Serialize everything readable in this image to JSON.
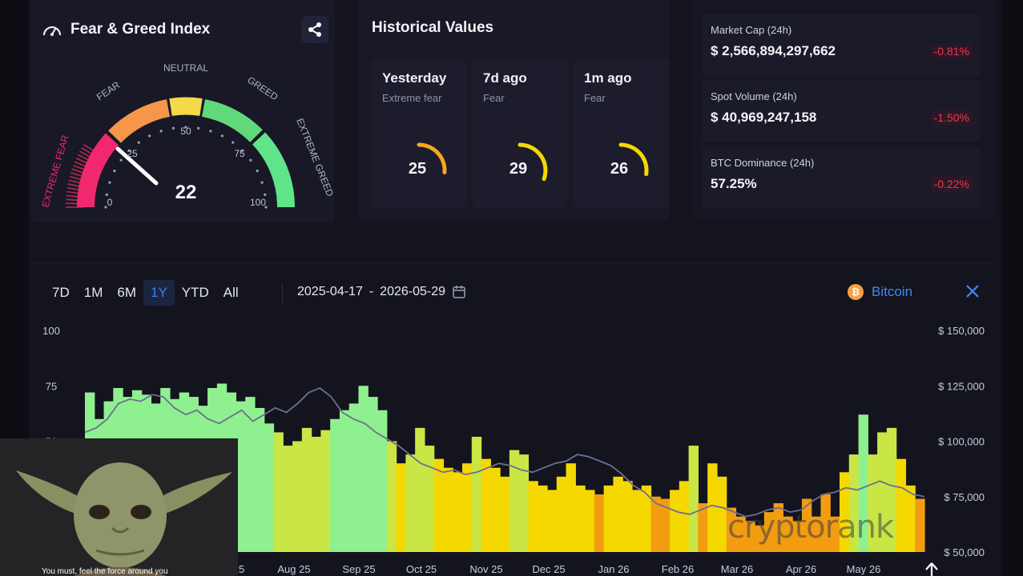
{
  "fear_greed": {
    "title": "Fear & Greed Index",
    "value": 22,
    "zone_labels": {
      "extreme_fear": "EXTREME FEAR",
      "fear": "FEAR",
      "neutral": "NEUTRAL",
      "greed": "GREED",
      "extreme_greed": "EXTREME GREED"
    },
    "ticks": [
      "0",
      "25",
      "50",
      "75",
      "100"
    ]
  },
  "historical": {
    "title": "Historical Values",
    "items": [
      {
        "label": "Yesterday",
        "sub": "Extreme fear",
        "value": "25",
        "color": "#f5a623"
      },
      {
        "label": "7d ago",
        "sub": "Fear",
        "value": "29",
        "color": "#f5d800"
      },
      {
        "label": "1m ago",
        "sub": "Fear",
        "value": "26",
        "color": "#f5d800"
      }
    ]
  },
  "market": [
    {
      "label": "Market Cap (24h)",
      "value": "$ 2,566,894,297,662",
      "change": "-0.81%"
    },
    {
      "label": "Spot Volume (24h)",
      "value": "$ 40,969,247,158",
      "change": "-1.50%"
    },
    {
      "label": "BTC Dominance (24h)",
      "value": "57.25%",
      "change": "-0.22%"
    }
  ],
  "controls": {
    "ranges": [
      "7D",
      "1M",
      "6M",
      "1Y",
      "YTD",
      "All"
    ],
    "active_range": "1Y",
    "date_start": "2025-04-17",
    "date_sep": "-",
    "date_end": "2026-05-29",
    "coin": "Bitcoin",
    "coin_symbol": "₿"
  },
  "overlay": {
    "caption": "You must, feel the force around you",
    "watermark": "cryptorank"
  },
  "chart_data": {
    "type": "bar",
    "x_ticks": [
      "25",
      "Aug 25",
      "Sep 25",
      "Oct 25",
      "Nov 25",
      "Dec 25",
      "Jan 26",
      "Feb 26",
      "Mar 26",
      "Apr 26",
      "May 26"
    ],
    "y_left_ticks": [
      "100",
      "75",
      "50"
    ],
    "y_right_ticks": [
      "$ 150,000",
      "$ 125,000",
      "$ 100,000",
      "$ 75,000",
      "$ 50,000"
    ],
    "y_left_range": [
      0,
      100
    ],
    "y_right_range": [
      50000,
      150000
    ],
    "grid": false,
    "series": [
      {
        "name": "Fear & Greed",
        "kind": "bars",
        "values": [
          72,
          60,
          68,
          74,
          70,
          73,
          71,
          67,
          74,
          69,
          72,
          70,
          66,
          74,
          76,
          72,
          68,
          70,
          65,
          58,
          54,
          48,
          50,
          56,
          52,
          55,
          60,
          64,
          67,
          75,
          70,
          64,
          50,
          40,
          44,
          56,
          48,
          42,
          38,
          36,
          40,
          52,
          42,
          38,
          34,
          46,
          44,
          32,
          30,
          28,
          34,
          40,
          30,
          28,
          26,
          30,
          34,
          32,
          28,
          30,
          25,
          24,
          28,
          32,
          48,
          22,
          40,
          34,
          20,
          16,
          14,
          12,
          18,
          22,
          16,
          14,
          24,
          16,
          26,
          16,
          36,
          44,
          62,
          44,
          54,
          56,
          42,
          30,
          24
        ],
        "color_scale": [
          "#f39c12",
          "#f5d800",
          "#8ff08f"
        ]
      },
      {
        "name": "Bitcoin",
        "kind": "line",
        "values": [
          104000,
          106000,
          110000,
          117000,
          119000,
          118000,
          121000,
          120000,
          115000,
          112000,
          114000,
          110000,
          108000,
          111000,
          114000,
          109000,
          112000,
          115000,
          113000,
          117000,
          122000,
          124000,
          120000,
          113000,
          110000,
          108000,
          104000,
          101000,
          98000,
          94000,
          90000,
          88000,
          86000,
          87000,
          85000,
          86000,
          88000,
          90000,
          89000,
          87000,
          86000,
          88000,
          90000,
          91000,
          94000,
          93000,
          91000,
          89000,
          85000,
          80000,
          77000,
          72000,
          70000,
          68000,
          67000,
          69000,
          71000,
          70000,
          68000,
          66000,
          67000,
          69000,
          70000,
          68000,
          69000,
          73000,
          76000,
          77000,
          79000,
          78000,
          80000,
          82000,
          80000,
          79000,
          76000,
          75000
        ]
      }
    ]
  }
}
